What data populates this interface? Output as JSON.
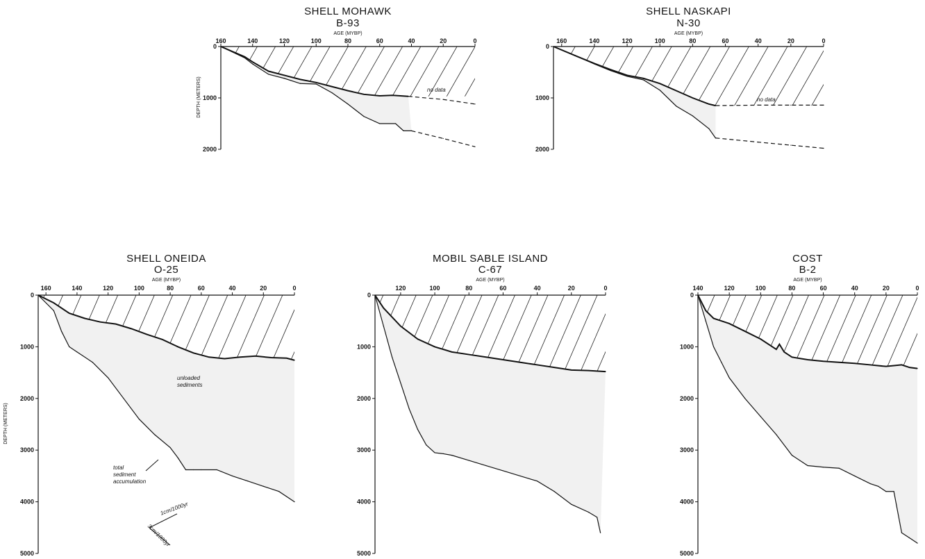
{
  "chart_data": [
    {
      "type": "line",
      "title": "SHELL MOHAWK",
      "subtitle": "B-93",
      "xlabel": "AGE (MYBP)",
      "ylabel": "DEPTH (METERS)",
      "xlim": [
        160,
        0
      ],
      "ylim": [
        0,
        2000
      ],
      "x_ticks": [
        "160",
        "140",
        "120",
        "100",
        "80",
        "60",
        "40",
        "20",
        "0"
      ],
      "y_ticks": [
        "0",
        "1000",
        "2000"
      ],
      "series": [
        {
          "x": [
            160,
            145,
            140,
            130,
            120,
            110,
            100,
            90,
            80,
            70,
            60,
            52,
            42
          ],
          "y": [
            0,
            200,
            300,
            480,
            560,
            640,
            700,
            780,
            860,
            930,
            960,
            950,
            970
          ]
        },
        {
          "x": [
            160,
            145,
            140,
            130,
            120,
            110,
            100,
            90,
            80,
            70,
            60,
            50,
            45,
            40
          ],
          "y": [
            0,
            220,
            340,
            540,
            620,
            720,
            730,
            900,
            1120,
            1360,
            1500,
            1500,
            1640,
            1640
          ]
        },
        {
          "x": [
            42,
            20,
            0
          ],
          "y": [
            970,
            1030,
            1120
          ],
          "dashed": true
        },
        {
          "x": [
            40,
            20,
            0
          ],
          "y": [
            1640,
            1790,
            1950
          ],
          "dashed": true
        }
      ],
      "annotations": [
        "no data"
      ]
    },
    {
      "type": "line",
      "title": "SHELL NASKAPI",
      "subtitle": "N-30",
      "xlabel": "AGE (MYBP)",
      "xlim": [
        165,
        0
      ],
      "ylim": [
        0,
        2000
      ],
      "x_ticks": [
        "160",
        "140",
        "120",
        "100",
        "80",
        "60",
        "40",
        "20",
        "0"
      ],
      "y_ticks": [
        "0",
        "1000",
        "2000"
      ],
      "series": [
        {
          "x": [
            165,
            150,
            140,
            130,
            120,
            110,
            100,
            90,
            80,
            70,
            66
          ],
          "y": [
            0,
            200,
            330,
            450,
            560,
            620,
            720,
            860,
            1000,
            1120,
            1150
          ]
        },
        {
          "x": [
            165,
            150,
            140,
            130,
            120,
            110,
            100,
            90,
            80,
            70,
            66
          ],
          "y": [
            0,
            200,
            340,
            470,
            580,
            650,
            850,
            1160,
            1350,
            1600,
            1780
          ]
        },
        {
          "x": [
            66,
            40,
            20,
            0
          ],
          "y": [
            1150,
            1140,
            1140,
            1140
          ],
          "dashed": true
        },
        {
          "x": [
            66,
            40,
            20,
            0
          ],
          "y": [
            1780,
            1860,
            1920,
            1980
          ],
          "dashed": true
        }
      ],
      "annotations": [
        "no data"
      ]
    },
    {
      "type": "line",
      "title": "SHELL ONEIDA",
      "subtitle": "O-25",
      "xlabel": "AGE (MYBP)",
      "ylabel": "DEPTH (METERS)",
      "xlim": [
        165,
        0
      ],
      "ylim": [
        0,
        5000
      ],
      "x_ticks": [
        "160",
        "140",
        "120",
        "100",
        "80",
        "60",
        "40",
        "20",
        "0"
      ],
      "y_ticks": [
        "0",
        "1000",
        "2000",
        "3000",
        "4000",
        "5000"
      ],
      "series": [
        {
          "name": "unloaded sediments",
          "x": [
            165,
            155,
            145,
            135,
            125,
            115,
            105,
            95,
            85,
            75,
            65,
            55,
            45,
            35,
            25,
            15,
            5,
            0
          ],
          "y": [
            0,
            150,
            350,
            450,
            520,
            560,
            650,
            760,
            860,
            1000,
            1120,
            1200,
            1230,
            1200,
            1180,
            1210,
            1220,
            1260
          ]
        },
        {
          "name": "total sediment accumulation",
          "x": [
            165,
            155,
            150,
            145,
            140,
            130,
            120,
            110,
            100,
            90,
            80,
            75,
            70,
            65,
            60,
            50,
            40,
            30,
            20,
            10,
            0
          ],
          "y": [
            0,
            300,
            700,
            1000,
            1100,
            1300,
            1600,
            2000,
            2400,
            2700,
            2950,
            3150,
            3380,
            3380,
            3380,
            3380,
            3500,
            3600,
            3700,
            3800,
            4000
          ]
        }
      ],
      "annotations": [
        "unloaded sediments",
        "total sediment accumulation",
        "1cm/1000yr",
        "3cm/1000yr"
      ]
    },
    {
      "type": "line",
      "title": "MOBIL SABLE ISLAND",
      "subtitle": "C-67",
      "xlabel": "AGE (MYBP)",
      "xlim": [
        135,
        0
      ],
      "ylim": [
        0,
        5000
      ],
      "x_ticks": [
        "120",
        "100",
        "80",
        "60",
        "40",
        "20",
        "0"
      ],
      "y_ticks": [
        "0",
        "1000",
        "2000",
        "3000",
        "4000",
        "5000"
      ],
      "series": [
        {
          "x": [
            135,
            130,
            120,
            110,
            100,
            90,
            80,
            70,
            60,
            50,
            40,
            30,
            20,
            10,
            0
          ],
          "y": [
            0,
            250,
            600,
            850,
            1000,
            1100,
            1150,
            1200,
            1250,
            1300,
            1350,
            1400,
            1450,
            1460,
            1480
          ]
        },
        {
          "x": [
            135,
            130,
            125,
            120,
            115,
            110,
            105,
            100,
            95,
            90,
            80,
            70,
            60,
            50,
            40,
            30,
            20,
            10,
            5,
            3
          ],
          "y": [
            0,
            600,
            1200,
            1700,
            2200,
            2600,
            2900,
            3050,
            3070,
            3100,
            3200,
            3300,
            3400,
            3500,
            3600,
            3800,
            4050,
            4200,
            4300,
            4600
          ]
        }
      ]
    },
    {
      "type": "line",
      "title": "COST",
      "subtitle": "B-2",
      "xlabel": "AGE (MYBP)",
      "xlim": [
        140,
        0
      ],
      "ylim": [
        0,
        5000
      ],
      "x_ticks": [
        "140",
        "120",
        "100",
        "80",
        "60",
        "40",
        "20",
        "0"
      ],
      "y_ticks": [
        "0",
        "1000",
        "2000",
        "3000",
        "4000",
        "5000"
      ],
      "series": [
        {
          "x": [
            140,
            135,
            130,
            125,
            120,
            110,
            100,
            90,
            88,
            85,
            80,
            70,
            60,
            50,
            40,
            30,
            20,
            10,
            5,
            0
          ],
          "y": [
            0,
            300,
            450,
            500,
            550,
            700,
            850,
            1050,
            950,
            1100,
            1200,
            1250,
            1280,
            1300,
            1320,
            1350,
            1380,
            1350,
            1400,
            1420
          ]
        },
        {
          "x": [
            140,
            135,
            130,
            125,
            120,
            110,
            100,
            90,
            80,
            70,
            60,
            50,
            40,
            30,
            25,
            20,
            15,
            10,
            5,
            0
          ],
          "y": [
            0,
            500,
            1000,
            1300,
            1600,
            2000,
            2350,
            2700,
            3100,
            3300,
            3330,
            3350,
            3500,
            3650,
            3700,
            3800,
            3800,
            4600,
            4700,
            4800
          ]
        }
      ]
    }
  ]
}
